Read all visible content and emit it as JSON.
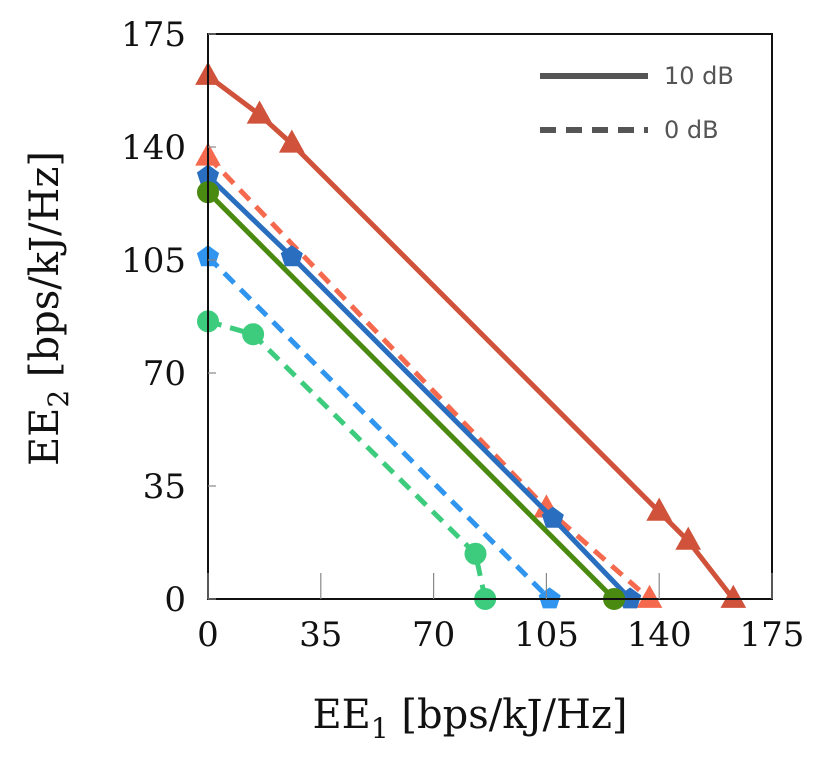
{
  "chart_data": {
    "type": "line",
    "xlabel": {
      "main": "EE",
      "sub": "1",
      "rest": " [bps/kJ/Hz]"
    },
    "ylabel": {
      "main": "EE",
      "sub": "2",
      "rest": " [bps/kJ/Hz]"
    },
    "xlim": [
      0,
      175
    ],
    "ylim": [
      0,
      175
    ],
    "xticks": [
      0,
      35,
      70,
      105,
      140,
      175
    ],
    "yticks": [
      0,
      35,
      70,
      105,
      140,
      175
    ],
    "xtick_labels": [
      "0",
      "35",
      "70",
      "105",
      "140",
      "175"
    ],
    "ytick_labels": [
      "0",
      "35",
      "70",
      "105",
      "140",
      "175"
    ],
    "grid": false,
    "legend": {
      "placement": "top-right",
      "entries": [
        {
          "label": "10 dB",
          "style": "solid"
        },
        {
          "label": "0 dB",
          "style": "dashed"
        }
      ]
    },
    "series": [
      {
        "style": "solid",
        "color": "#d0523a",
        "marker": "triangle",
        "x": [
          0,
          16,
          26,
          140,
          149,
          163
        ],
        "y": [
          162,
          150,
          141,
          27,
          18,
          0
        ]
      },
      {
        "style": "dashed",
        "color": "#f56a4e",
        "marker": "triangle",
        "x": [
          0,
          105,
          137
        ],
        "y": [
          137,
          28,
          0
        ]
      },
      {
        "style": "solid",
        "color": "#2a6ebf",
        "marker": "pentagon",
        "x": [
          0,
          26,
          107,
          131
        ],
        "y": [
          131,
          106,
          25,
          0
        ]
      },
      {
        "style": "solid",
        "color": "#4a8a10",
        "marker": "circle",
        "x": [
          0,
          126
        ],
        "y": [
          126,
          0
        ]
      },
      {
        "style": "dashed",
        "color": "#2f95ef",
        "marker": "pentagon",
        "x": [
          0,
          106
        ],
        "y": [
          106,
          0
        ]
      },
      {
        "style": "dashed",
        "color": "#3dcc7e",
        "marker": "circle",
        "x": [
          0,
          14,
          83,
          86
        ],
        "y": [
          86,
          82,
          14,
          0
        ]
      }
    ]
  }
}
